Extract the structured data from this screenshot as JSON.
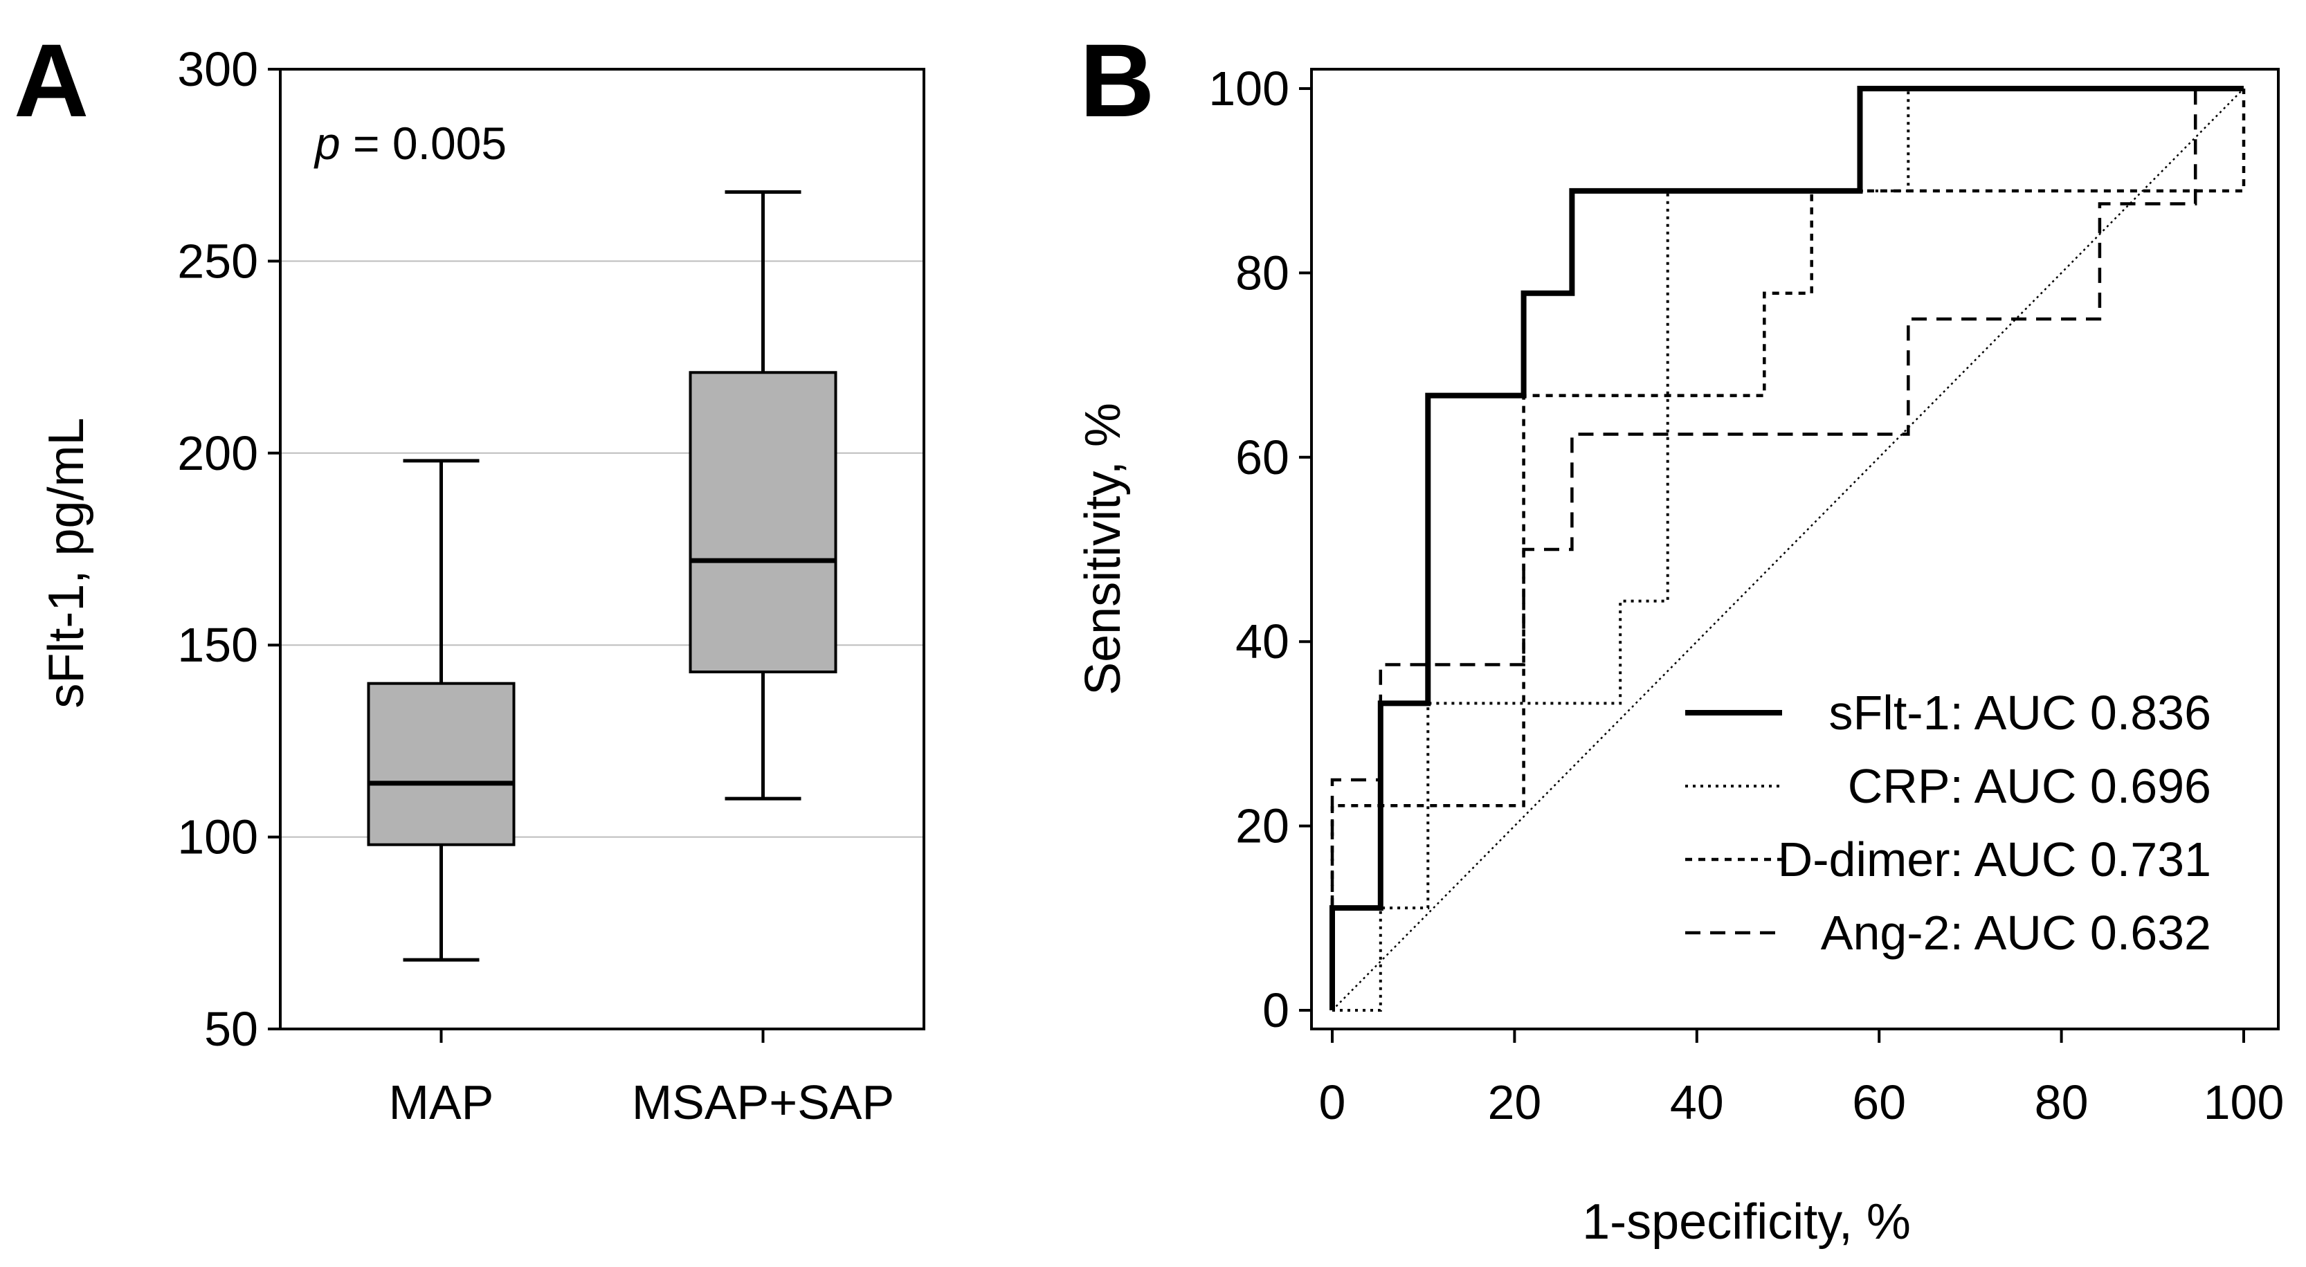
{
  "chart_data": [
    {
      "panel": "A",
      "type": "box",
      "title": "",
      "xlabel": "",
      "ylabel": "sFlt-1, pg/mL",
      "ylim": [
        50,
        300
      ],
      "yticks": [
        "50",
        "100",
        "150",
        "200",
        "250",
        "300"
      ],
      "grid": true,
      "annotation_italic": "p",
      "annotation_rest": " = 0.005",
      "categories": [
        "MAP",
        "MSAP+SAP"
      ],
      "boxes": [
        {
          "name": "MAP",
          "whisker_low": 68,
          "q1": 98,
          "median": 114,
          "q3": 140,
          "whisker_high": 198
        },
        {
          "name": "MSAP+SAP",
          "whisker_low": 110,
          "q1": 143,
          "median": 172,
          "q3": 221,
          "whisker_high": 268
        }
      ],
      "box_color": "#b3b3b3"
    },
    {
      "panel": "B",
      "type": "line",
      "title": "",
      "xlabel": "1-specificity, %",
      "ylabel": "Sensitivity, %",
      "xlim": [
        0,
        100
      ],
      "ylim": [
        0,
        100
      ],
      "xticks": [
        "0",
        "20",
        "40",
        "60",
        "80",
        "100"
      ],
      "yticks": [
        "0",
        "20",
        "40",
        "60",
        "80",
        "100"
      ],
      "legend_position": "bottom-right",
      "series": [
        {
          "name": "sFlt-1: AUC 0.836",
          "style": "solid",
          "x": [
            0,
            0,
            5.3,
            5.3,
            10.5,
            10.5,
            21,
            21,
            26.3,
            26.3,
            57.9,
            57.9,
            100
          ],
          "y": [
            0,
            11.1,
            11.1,
            33.3,
            33.3,
            66.7,
            66.7,
            77.8,
            77.8,
            88.9,
            88.9,
            100,
            100
          ]
        },
        {
          "name": "CRP: AUC 0.696",
          "style": "dotted",
          "x": [
            0,
            5.3,
            5.3,
            10.5,
            10.5,
            15.8,
            15.8,
            31.6,
            31.6,
            36.8,
            36.8,
            63.2,
            63.2,
            100
          ],
          "y": [
            0,
            0,
            11.1,
            11.1,
            33.3,
            33.3,
            33.3,
            33.3,
            44.4,
            44.4,
            88.9,
            88.9,
            100,
            100
          ]
        },
        {
          "name": "D-dimer: AUC 0.731",
          "style": "short-dash",
          "x": [
            0,
            0,
            5.3,
            5.3,
            15.8,
            15.8,
            21,
            21,
            47.4,
            47.4,
            52.6,
            52.6,
            100,
            100
          ],
          "y": [
            0,
            22.2,
            22.2,
            22.2,
            22.2,
            22.2,
            22.2,
            66.7,
            66.7,
            77.8,
            77.8,
            88.9,
            88.9,
            100
          ]
        },
        {
          "name": "Ang-2: AUC 0.632",
          "style": "long-dash",
          "x": [
            0,
            0,
            5.3,
            5.3,
            21,
            21,
            26.3,
            26.3,
            63.2,
            63.2,
            84.2,
            84.2,
            94.7,
            94.7,
            100
          ],
          "y": [
            0,
            25,
            25,
            37.5,
            37.5,
            50,
            50,
            62.5,
            62.5,
            75,
            75,
            87.5,
            87.5,
            100,
            100
          ]
        },
        {
          "name": "reference",
          "style": "diagonal",
          "x": [
            0,
            100
          ],
          "y": [
            0,
            100
          ]
        }
      ]
    }
  ]
}
